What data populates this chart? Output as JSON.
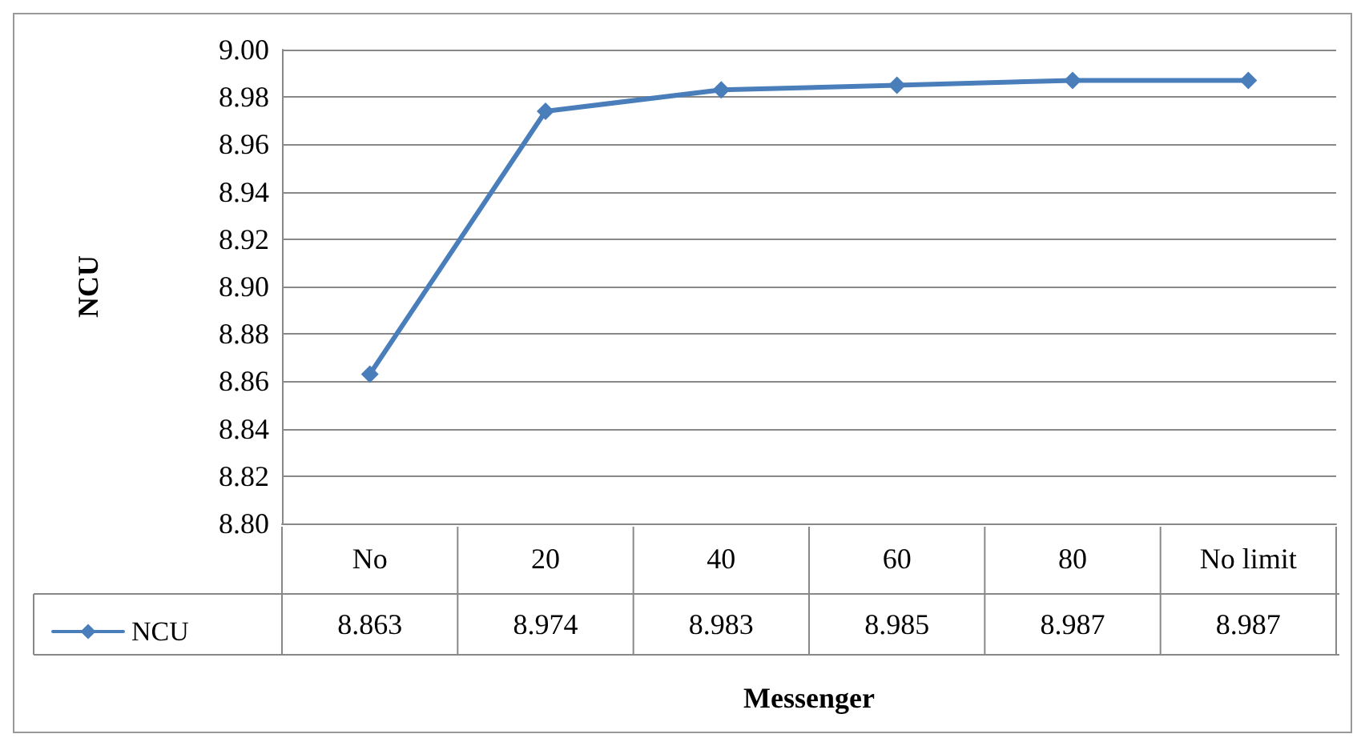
{
  "chart_data": {
    "type": "line",
    "xlabel": "Messenger",
    "ylabel": "NCU",
    "categories": [
      "No",
      "20",
      "40",
      "60",
      "80",
      "No limit"
    ],
    "series": [
      {
        "name": "NCU",
        "color": "#4a7ebb",
        "values": [
          8.863,
          8.974,
          8.983,
          8.985,
          8.987,
          8.987
        ]
      }
    ],
    "ylim": [
      8.8,
      9.0
    ],
    "yticks": [
      {
        "value": 8.8,
        "label": "8.80"
      },
      {
        "value": 8.82,
        "label": "8.82"
      },
      {
        "value": 8.84,
        "label": "8.84"
      },
      {
        "value": 8.86,
        "label": "8.86"
      },
      {
        "value": 8.88,
        "label": "8.88"
      },
      {
        "value": 8.9,
        "label": "8.90"
      },
      {
        "value": 8.92,
        "label": "8.92"
      },
      {
        "value": 8.94,
        "label": "8.94"
      },
      {
        "value": 8.96,
        "label": "8.96"
      },
      {
        "value": 8.98,
        "label": "8.98"
      },
      {
        "value": 9.0,
        "label": "9.00"
      }
    ],
    "grid": "y",
    "marker": "diamond",
    "line_style": "solid",
    "legend": "bottom left",
    "data_labels": true
  }
}
